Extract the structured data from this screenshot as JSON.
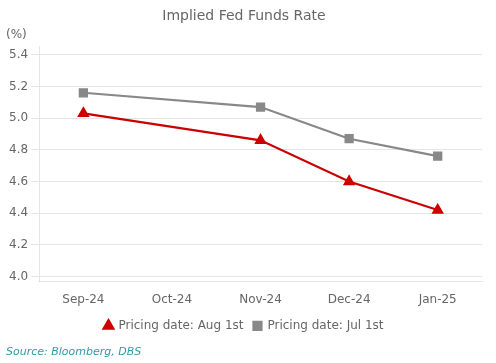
{
  "chart_data": {
    "type": "line",
    "title": "Implied Fed Funds Rate",
    "y_label": "(%)",
    "categories": [
      "Sep-24",
      "Oct-24",
      "Nov-24",
      "Dec-24",
      "Jan-25"
    ],
    "series": [
      {
        "name": "Pricing date: Aug 1st",
        "color": "#cc0000",
        "marker": "triangle",
        "values": [
          5.03,
          null,
          4.86,
          4.6,
          4.42
        ]
      },
      {
        "name": "Pricing date: Jul 1st",
        "color": "#888888",
        "marker": "square",
        "values": [
          5.16,
          null,
          5.07,
          4.87,
          4.76
        ]
      }
    ],
    "ylim": [
      3.97,
      5.45
    ],
    "yticks": [
      {
        "value": 4.0,
        "label": "4.0"
      },
      4.2,
      4.4,
      4.6,
      4.8,
      {
        "value": 5.0,
        "label": "5.0"
      },
      5.2,
      5.4
    ],
    "grid": true,
    "legend": "bottom",
    "source": "Source: Bloomberg, DBS"
  }
}
